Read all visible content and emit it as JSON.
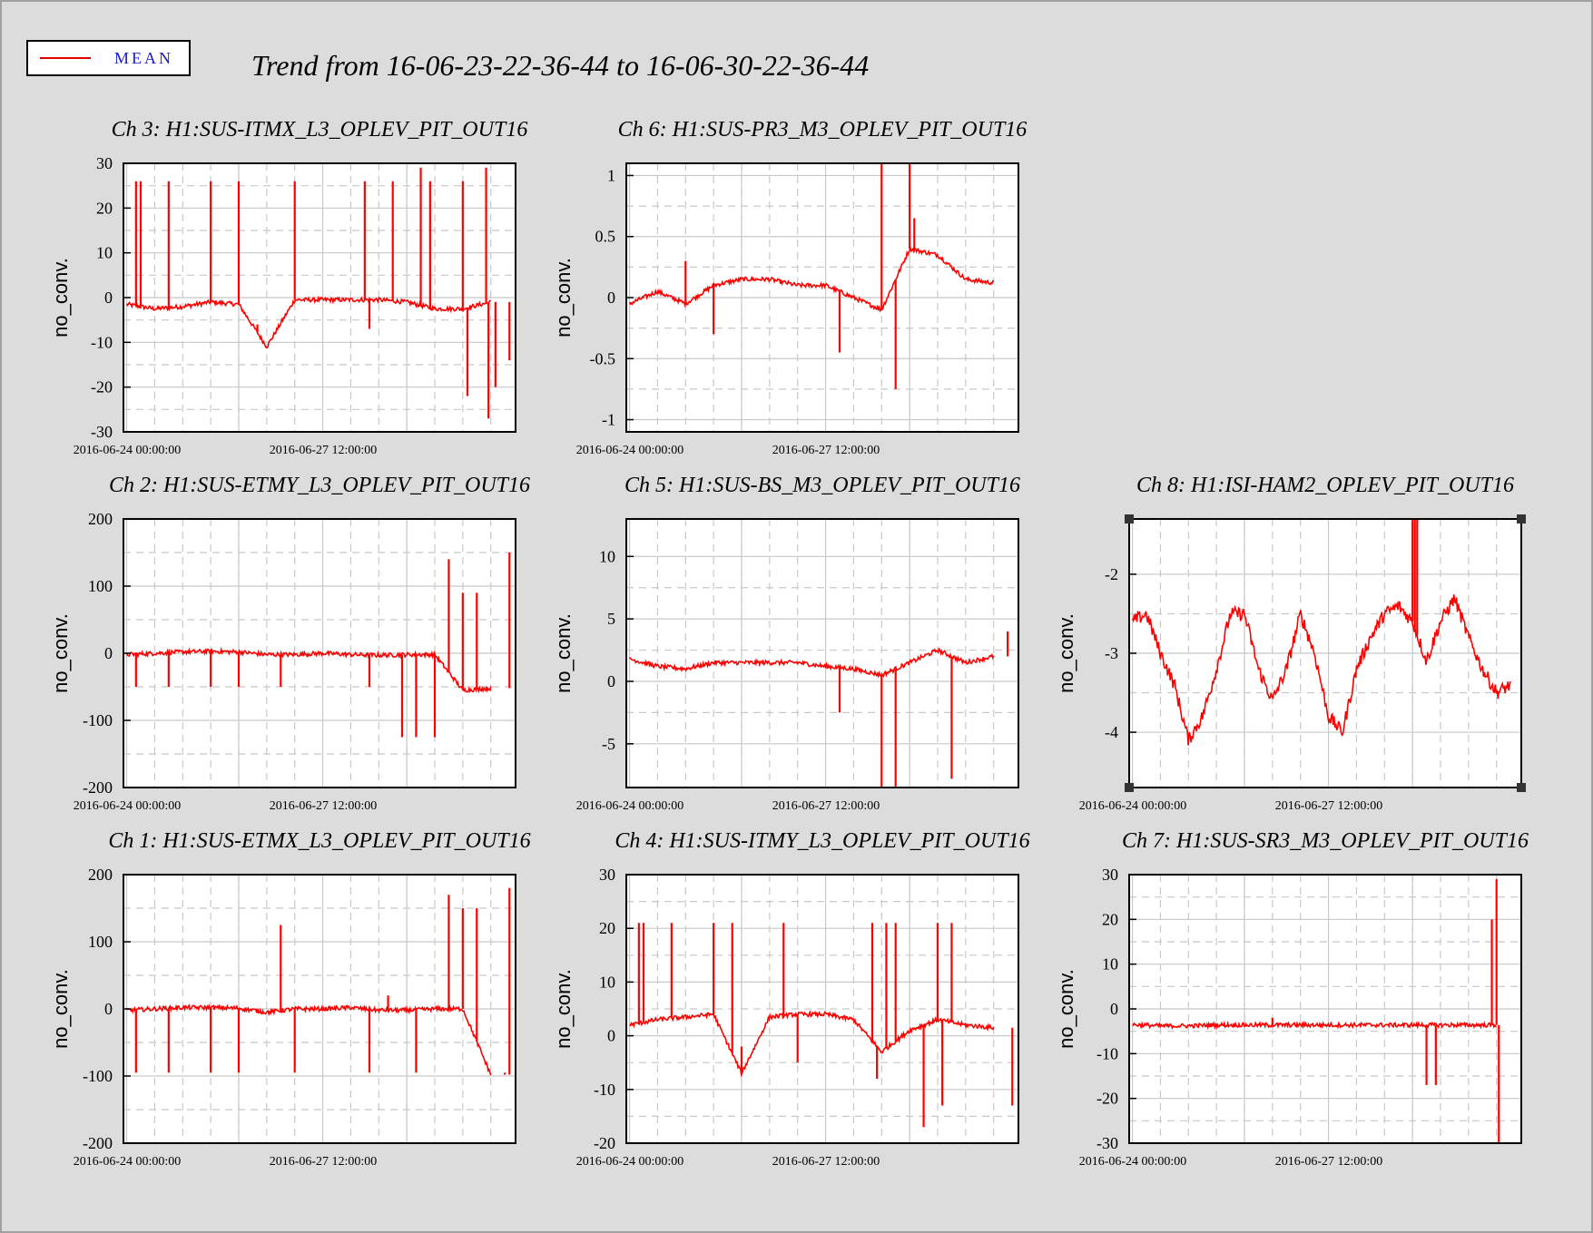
{
  "header": {
    "title": "Trend from 16-06-23-22-36-44 to 16-06-30-22-36-44"
  },
  "legend": {
    "label": "MEAN",
    "line_color": "#e00000",
    "text_color": "#1a1acc"
  },
  "colors": {
    "series": "#ff0000",
    "frame": "#000000",
    "grid_solid": "#c8c8c8",
    "grid_dash": "#c8c8c8",
    "background": "#dcdcdc",
    "panel_bg": "#ffffff"
  },
  "chart_data": [
    {
      "id": "ch3",
      "type": "line",
      "title": "Ch 3: H1:SUS-ITMX_L3_OPLEV_PIT_OUT16",
      "xlabel": "",
      "ylabel": "no_conv.",
      "xlim": [
        "2016-06-23 22:36:44",
        "2016-06-30 22:36:44"
      ],
      "ylim": [
        -30,
        30
      ],
      "yticks": [
        -30,
        -20,
        -10,
        0,
        10,
        20,
        30
      ],
      "yticklabels": [
        "-30",
        "-20",
        "-10",
        "0",
        "10",
        "20",
        "30"
      ],
      "xticks": [
        "2016-06-24 00:00:00",
        "2016-06-27 12:00:00"
      ],
      "x": [
        "2016-06-24 00:00",
        "2016-06-24 12:00",
        "2016-06-25 00:00",
        "2016-06-25 12:00",
        "2016-06-26 00:00",
        "2016-06-26 12:00",
        "2016-06-27 00:00",
        "2016-06-27 12:00",
        "2016-06-28 00:00",
        "2016-06-28 12:00",
        "2016-06-29 00:00",
        "2016-06-29 12:00",
        "2016-06-30 00:00",
        "2016-06-30 12:00"
      ],
      "series": [
        {
          "values": [
            -1.5,
            -2.5,
            -2,
            -1,
            -1.5,
            -11,
            -0.5,
            -0.5,
            -0.5,
            -0.5,
            -1,
            -2.5,
            -2.5,
            -1
          ]
        }
      ],
      "spikes": [
        [
          "2016-06-24 04:00",
          26
        ],
        [
          "2016-06-24 06:00",
          26
        ],
        [
          "2016-06-24 18:00",
          26
        ],
        [
          "2016-06-25 12:00",
          26
        ],
        [
          "2016-06-26 00:00",
          26
        ],
        [
          "2016-06-26 08:00",
          -6
        ],
        [
          "2016-06-27 00:00",
          26
        ],
        [
          "2016-06-28 06:00",
          26
        ],
        [
          "2016-06-28 08:00",
          -7
        ],
        [
          "2016-06-28 18:00",
          26
        ],
        [
          "2016-06-29 06:00",
          29
        ],
        [
          "2016-06-29 10:00",
          26
        ],
        [
          "2016-06-30 00:00",
          26
        ],
        [
          "2016-06-30 02:00",
          -22
        ],
        [
          "2016-06-30 10:00",
          29
        ],
        [
          "2016-06-30 11:00",
          -27
        ],
        [
          "2016-06-30 14:00",
          -20
        ],
        [
          "2016-06-30 20:00",
          -14
        ]
      ]
    },
    {
      "id": "ch6",
      "type": "line",
      "title": "Ch 6: H1:SUS-PR3_M3_OPLEV_PIT_OUT16",
      "xlabel": "",
      "ylabel": "no_conv.",
      "xlim": [
        "2016-06-23 22:36:44",
        "2016-06-30 22:36:44"
      ],
      "ylim": [
        -1.1,
        1.1
      ],
      "yticks": [
        -1,
        -0.5,
        0,
        0.5,
        1
      ],
      "yticklabels": [
        "-1",
        "-0.5",
        "0",
        "0.5",
        "1"
      ],
      "xticks": [
        "2016-06-24 00:00:00",
        "2016-06-27 12:00:00"
      ],
      "x": [
        "2016-06-24 00:00",
        "2016-06-24 12:00",
        "2016-06-25 00:00",
        "2016-06-25 12:00",
        "2016-06-26 00:00",
        "2016-06-26 12:00",
        "2016-06-27 00:00",
        "2016-06-27 12:00",
        "2016-06-28 00:00",
        "2016-06-28 12:00",
        "2016-06-29 00:00",
        "2016-06-29 12:00",
        "2016-06-30 00:00",
        "2016-06-30 12:00"
      ],
      "series": [
        {
          "values": [
            -0.05,
            0.05,
            -0.05,
            0.1,
            0.15,
            0.15,
            0.1,
            0.1,
            0.0,
            -0.1,
            0.4,
            0.35,
            0.15,
            0.12
          ]
        }
      ],
      "spikes": [
        [
          "2016-06-25 00:00",
          0.3
        ],
        [
          "2016-06-25 12:00",
          -0.3
        ],
        [
          "2016-06-27 18:00",
          -0.45
        ],
        [
          "2016-06-28 12:00",
          1.1
        ],
        [
          "2016-06-28 18:00",
          -0.75
        ],
        [
          "2016-06-29 00:00",
          1.1
        ],
        [
          "2016-06-29 02:00",
          0.65
        ]
      ]
    },
    {
      "id": "ch2",
      "type": "line",
      "title": "Ch 2: H1:SUS-ETMY_L3_OPLEV_PIT_OUT16",
      "xlabel": "",
      "ylabel": "no_conv.",
      "xlim": [
        "2016-06-23 22:36:44",
        "2016-06-30 22:36:44"
      ],
      "ylim": [
        -200,
        200
      ],
      "yticks": [
        -200,
        -100,
        0,
        100,
        200
      ],
      "yticklabels": [
        "-200",
        "-100",
        "0",
        "100",
        "200"
      ],
      "xticks": [
        "2016-06-24 00:00:00",
        "2016-06-27 12:00:00"
      ],
      "x": [
        "2016-06-24 00:00",
        "2016-06-24 12:00",
        "2016-06-25 00:00",
        "2016-06-25 12:00",
        "2016-06-26 00:00",
        "2016-06-26 12:00",
        "2016-06-27 00:00",
        "2016-06-27 12:00",
        "2016-06-28 00:00",
        "2016-06-28 12:00",
        "2016-06-29 00:00",
        "2016-06-29 12:00",
        "2016-06-30 00:00",
        "2016-06-30 12:00"
      ],
      "series": [
        {
          "values": [
            -2,
            0,
            2,
            3,
            2,
            -2,
            -2,
            0,
            -2,
            -3,
            -2,
            -2,
            -55,
            -52
          ]
        }
      ],
      "spikes": [
        [
          "2016-06-24 04:00",
          -50
        ],
        [
          "2016-06-24 18:00",
          -50
        ],
        [
          "2016-06-25 12:00",
          -50
        ],
        [
          "2016-06-26 00:00",
          -50
        ],
        [
          "2016-06-26 18:00",
          -50
        ],
        [
          "2016-06-28 08:00",
          -50
        ],
        [
          "2016-06-28 22:00",
          -125
        ],
        [
          "2016-06-29 04:00",
          -125
        ],
        [
          "2016-06-29 12:00",
          -125
        ],
        [
          "2016-06-29 18:00",
          140
        ],
        [
          "2016-06-30 00:00",
          90
        ],
        [
          "2016-06-30 06:00",
          90
        ],
        [
          "2016-06-30 20:00",
          150
        ]
      ]
    },
    {
      "id": "ch5",
      "type": "line",
      "title": "Ch 5: H1:SUS-BS_M3_OPLEV_PIT_OUT16",
      "xlabel": "",
      "ylabel": "no_conv.",
      "xlim": [
        "2016-06-23 22:36:44",
        "2016-06-30 22:36:44"
      ],
      "ylim": [
        -8.5,
        13
      ],
      "yticks": [
        -5,
        0,
        5,
        10
      ],
      "yticklabels": [
        "-5",
        "0",
        "5",
        "10"
      ],
      "xticks": [
        "2016-06-24 00:00:00",
        "2016-06-27 12:00:00"
      ],
      "x": [
        "2016-06-24 00:00",
        "2016-06-24 12:00",
        "2016-06-25 00:00",
        "2016-06-25 12:00",
        "2016-06-26 00:00",
        "2016-06-26 12:00",
        "2016-06-27 00:00",
        "2016-06-27 12:00",
        "2016-06-28 00:00",
        "2016-06-28 12:00",
        "2016-06-29 00:00",
        "2016-06-29 12:00",
        "2016-06-30 00:00",
        "2016-06-30 12:00"
      ],
      "series": [
        {
          "values": [
            1.8,
            1.2,
            1.0,
            1.5,
            1.5,
            1.5,
            1.5,
            1.2,
            1.0,
            0.5,
            1.5,
            2.5,
            1.5,
            2.0
          ]
        }
      ],
      "spikes": [
        [
          "2016-06-27 18:00",
          -2.5
        ],
        [
          "2016-06-28 12:00",
          -8.5
        ],
        [
          "2016-06-28 18:00",
          -8.5
        ],
        [
          "2016-06-29 18:00",
          -7.8
        ],
        [
          "2016-06-30 18:00",
          4
        ]
      ]
    },
    {
      "id": "ch8",
      "type": "line",
      "title": "Ch 8: H1:ISI-HAM2_OPLEV_PIT_OUT16",
      "xlabel": "",
      "ylabel": "no_conv.",
      "xlim": [
        "2016-06-23 22:36:44",
        "2016-06-30 22:36:44"
      ],
      "ylim": [
        -4.7,
        -1.3
      ],
      "yticks": [
        -4,
        -3,
        -2
      ],
      "yticklabels": [
        "-4",
        "-3",
        "-2"
      ],
      "xticks": [
        "2016-06-24 00:00:00",
        "2016-06-27 12:00:00"
      ],
      "x": [
        "2016-06-24 00:00",
        "2016-06-24 06:00",
        "2016-06-24 12:00",
        "2016-06-24 18:00",
        "2016-06-25 00:00",
        "2016-06-25 06:00",
        "2016-06-25 12:00",
        "2016-06-25 18:00",
        "2016-06-26 00:00",
        "2016-06-26 06:00",
        "2016-06-26 12:00",
        "2016-06-26 18:00",
        "2016-06-27 00:00",
        "2016-06-27 06:00",
        "2016-06-27 12:00",
        "2016-06-27 18:00",
        "2016-06-28 00:00",
        "2016-06-28 06:00",
        "2016-06-28 12:00",
        "2016-06-28 18:00",
        "2016-06-29 00:00",
        "2016-06-29 06:00",
        "2016-06-29 12:00",
        "2016-06-29 18:00",
        "2016-06-30 00:00",
        "2016-06-30 06:00",
        "2016-06-30 12:00",
        "2016-06-30 18:00"
      ],
      "series": [
        {
          "values": [
            -2.6,
            -2.5,
            -3.0,
            -3.4,
            -4.1,
            -3.8,
            -3.2,
            -2.5,
            -2.5,
            -3.2,
            -3.6,
            -3.2,
            -2.5,
            -3.0,
            -3.8,
            -4.0,
            -3.2,
            -2.8,
            -2.5,
            -2.4,
            -2.6,
            -3.1,
            -2.6,
            -2.3,
            -2.8,
            -3.2,
            -3.5,
            -3.4
          ]
        }
      ],
      "spikes": [
        [
          "2016-06-29 00:00",
          -1.3
        ],
        [
          "2016-06-29 01:00",
          -1.3
        ],
        [
          "2016-06-29 02:00",
          -1.3
        ]
      ]
    },
    {
      "id": "ch1",
      "type": "line",
      "title": "Ch 1: H1:SUS-ETMX_L3_OPLEV_PIT_OUT16",
      "xlabel": "",
      "ylabel": "no_conv.",
      "xlim": [
        "2016-06-23 22:36:44",
        "2016-06-30 22:36:44"
      ],
      "ylim": [
        -200,
        200
      ],
      "yticks": [
        -200,
        -100,
        0,
        100,
        200
      ],
      "yticklabels": [
        "-200",
        "-100",
        "0",
        "100",
        "200"
      ],
      "xticks": [
        "2016-06-24 00:00:00",
        "2016-06-27 12:00:00"
      ],
      "x": [
        "2016-06-24 00:00",
        "2016-06-24 12:00",
        "2016-06-25 00:00",
        "2016-06-25 12:00",
        "2016-06-26 00:00",
        "2016-06-26 12:00",
        "2016-06-27 00:00",
        "2016-06-27 12:00",
        "2016-06-28 00:00",
        "2016-06-28 12:00",
        "2016-06-29 00:00",
        "2016-06-29 12:00",
        "2016-06-30 00:00",
        "2016-06-30 12:00"
      ],
      "series": [
        {
          "values": [
            -2,
            0,
            2,
            2,
            1,
            -5,
            0,
            0,
            2,
            -2,
            -2,
            0,
            0,
            -98
          ]
        }
      ],
      "spikes": [
        [
          "2016-06-24 04:00",
          -95
        ],
        [
          "2016-06-24 18:00",
          -95
        ],
        [
          "2016-06-25 12:00",
          -95
        ],
        [
          "2016-06-26 00:00",
          -95
        ],
        [
          "2016-06-26 18:00",
          125
        ],
        [
          "2016-06-27 00:00",
          -95
        ],
        [
          "2016-06-28 08:00",
          -95
        ],
        [
          "2016-06-28 16:00",
          20
        ],
        [
          "2016-06-29 04:00",
          -95
        ],
        [
          "2016-06-29 18:00",
          170
        ],
        [
          "2016-06-30 00:00",
          150
        ],
        [
          "2016-06-30 06:00",
          150
        ],
        [
          "2016-06-30 18:00",
          -95
        ],
        [
          "2016-06-30 20:00",
          180
        ]
      ]
    },
    {
      "id": "ch4",
      "type": "line",
      "title": "Ch 4: H1:SUS-ITMY_L3_OPLEV_PIT_OUT16",
      "xlabel": "",
      "ylabel": "no_conv.",
      "xlim": [
        "2016-06-23 22:36:44",
        "2016-06-30 22:36:44"
      ],
      "ylim": [
        -20,
        30
      ],
      "yticks": [
        -20,
        -10,
        0,
        10,
        20,
        30
      ],
      "yticklabels": [
        "-20",
        "-10",
        "0",
        "10",
        "20",
        "30"
      ],
      "xticks": [
        "2016-06-24 00:00:00",
        "2016-06-27 12:00:00"
      ],
      "x": [
        "2016-06-24 00:00",
        "2016-06-24 12:00",
        "2016-06-25 00:00",
        "2016-06-25 12:00",
        "2016-06-26 00:00",
        "2016-06-26 12:00",
        "2016-06-27 00:00",
        "2016-06-27 12:00",
        "2016-06-28 00:00",
        "2016-06-28 12:00",
        "2016-06-29 00:00",
        "2016-06-29 12:00",
        "2016-06-30 00:00",
        "2016-06-30 12:00"
      ],
      "series": [
        {
          "values": [
            2,
            3,
            3.5,
            4,
            -7,
            3.5,
            4,
            4,
            3,
            -3,
            1,
            3,
            2,
            1.5
          ]
        }
      ],
      "spikes": [
        [
          "2016-06-24 04:00",
          21
        ],
        [
          "2016-06-24 06:00",
          21
        ],
        [
          "2016-06-24 18:00",
          21
        ],
        [
          "2016-06-25 12:00",
          21
        ],
        [
          "2016-06-25 20:00",
          21
        ],
        [
          "2016-06-26 00:00",
          -2
        ],
        [
          "2016-06-26 18:00",
          21
        ],
        [
          "2016-06-27 00:00",
          -5
        ],
        [
          "2016-06-28 08:00",
          21
        ],
        [
          "2016-06-28 10:00",
          -8
        ],
        [
          "2016-06-28 14:00",
          21
        ],
        [
          "2016-06-28 18:00",
          21
        ],
        [
          "2016-06-29 06:00",
          -17
        ],
        [
          "2016-06-29 12:00",
          21
        ],
        [
          "2016-06-29 14:00",
          -13
        ],
        [
          "2016-06-29 18:00",
          21
        ],
        [
          "2016-06-30 20:00",
          -13
        ]
      ]
    },
    {
      "id": "ch7",
      "type": "line",
      "title": "Ch 7: H1:SUS-SR3_M3_OPLEV_PIT_OUT16",
      "xlabel": "",
      "ylabel": "no_conv.",
      "xlim": [
        "2016-06-23 22:36:44",
        "2016-06-30 22:36:44"
      ],
      "ylim": [
        -30,
        30
      ],
      "yticks": [
        -30,
        -20,
        -10,
        0,
        10,
        20,
        30
      ],
      "yticklabels": [
        "-30",
        "-20",
        "-10",
        "0",
        "10",
        "20",
        "30"
      ],
      "xticks": [
        "2016-06-24 00:00:00",
        "2016-06-27 12:00:00"
      ],
      "x": [
        "2016-06-24 00:00",
        "2016-06-24 12:00",
        "2016-06-25 00:00",
        "2016-06-25 12:00",
        "2016-06-26 00:00",
        "2016-06-26 12:00",
        "2016-06-27 00:00",
        "2016-06-27 12:00",
        "2016-06-28 00:00",
        "2016-06-28 12:00",
        "2016-06-29 00:00",
        "2016-06-29 12:00",
        "2016-06-30 00:00",
        "2016-06-30 12:00"
      ],
      "series": [
        {
          "values": [
            -3.5,
            -3.8,
            -3.8,
            -3.6,
            -3.6,
            -3.6,
            -3.6,
            -3.6,
            -3.6,
            -3.6,
            -3.6,
            -3.6,
            -3.6,
            -3.6
          ]
        }
      ],
      "spikes": [
        [
          "2016-06-26 12:00",
          -2
        ],
        [
          "2016-06-29 06:00",
          -17
        ],
        [
          "2016-06-29 10:00",
          -17
        ],
        [
          "2016-06-30 10:00",
          20
        ],
        [
          "2016-06-30 12:00",
          29
        ],
        [
          "2016-06-30 13:00",
          -30
        ]
      ]
    }
  ]
}
